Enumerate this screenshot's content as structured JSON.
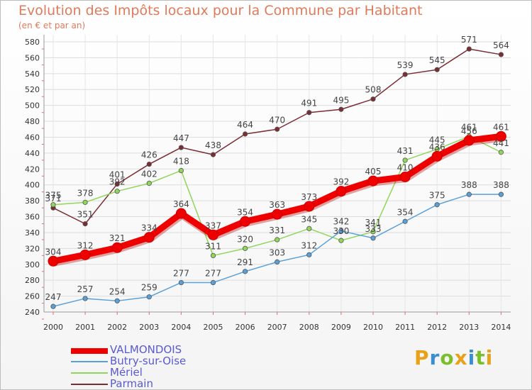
{
  "title": "Evolution des Impôts locaux pour la Commune par Habitant",
  "subtitle": "(en € et par an)",
  "logo": {
    "letters": [
      "P",
      "r",
      "o",
      "x",
      "i",
      "t",
      "i"
    ],
    "colors": [
      "#e8a21a",
      "#3b8ed0",
      "#7bbf2a",
      "#e8a21a",
      "#3b8ed0",
      "#7bbf2a",
      "#e8a21a"
    ]
  },
  "chart_data": {
    "type": "line",
    "title": "Evolution des Impôts locaux pour la Commune par Habitant",
    "subtitle": "(en € et par an)",
    "x": [
      "2000",
      "2001",
      "2002",
      "2003",
      "2004",
      "2005",
      "2006",
      "2007",
      "2008",
      "2009",
      "2010",
      "2011",
      "2012",
      "2013",
      "2014"
    ],
    "ylim": [
      240,
      580
    ],
    "yticks": [
      240,
      260,
      280,
      300,
      320,
      340,
      360,
      380,
      400,
      420,
      440,
      460,
      480,
      500,
      520,
      540,
      560,
      580
    ],
    "grid": true,
    "legend": "bottom-left",
    "series": [
      {
        "name": "Parmain",
        "color": "#7a2d33",
        "values": [
          371,
          351,
          401,
          426,
          447,
          438,
          464,
          470,
          491,
          495,
          508,
          539,
          545,
          571,
          564
        ]
      },
      {
        "name": "Mériel",
        "color": "#8fd65a",
        "values": [
          375,
          378,
          392,
          402,
          418,
          311,
          320,
          331,
          345,
          330,
          341,
          431,
          445,
          461,
          441
        ]
      },
      {
        "name": "Butry-sur-Oise",
        "color": "#5aa0d8",
        "values": [
          247,
          257,
          254,
          259,
          277,
          277,
          291,
          303,
          312,
          342,
          333,
          354,
          375,
          388,
          388
        ]
      },
      {
        "name": "VALMONDOIS",
        "color": "#ee0000",
        "values": [
          304,
          312,
          321,
          334,
          364,
          337,
          354,
          363,
          373,
          392,
          405,
          410,
          436,
          456,
          461
        ]
      }
    ],
    "legend_entries": [
      "VALMONDOIS",
      "Butry-sur-Oise",
      "Mériel",
      "Parmain"
    ]
  }
}
